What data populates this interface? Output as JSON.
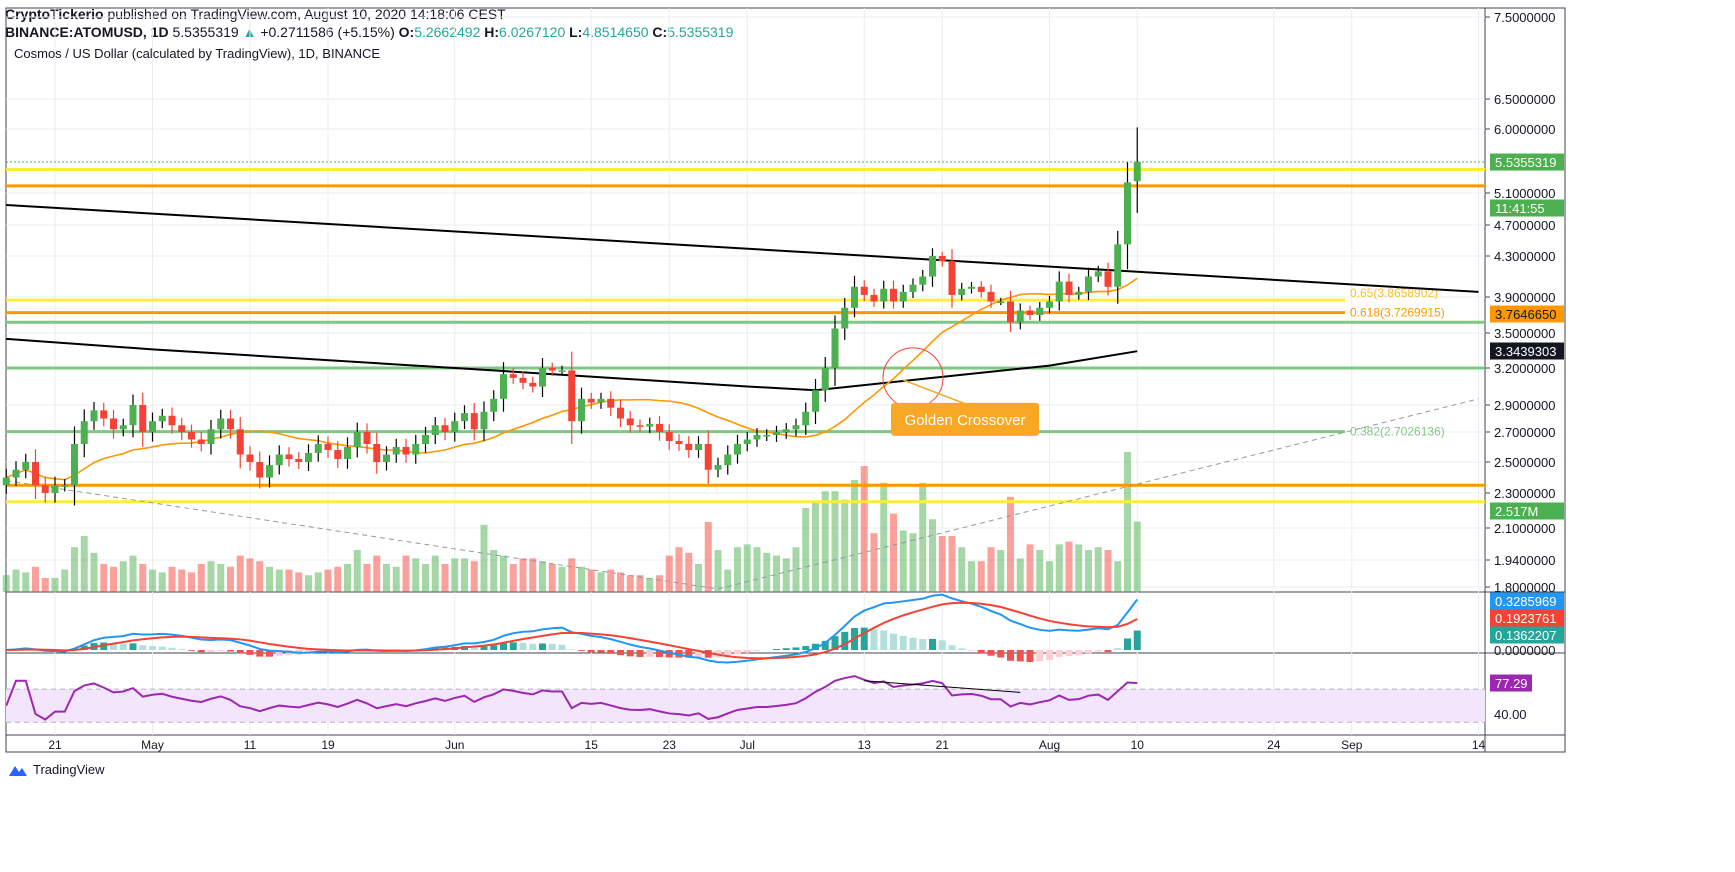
{
  "header": {
    "publisher": "CryptoTickerio",
    "published_text": "published on TradingView.com, August 10, 2020 14:18:06 CEST",
    "symbol": "BINANCE:ATOMUSD, 1D",
    "price": "5.5355319",
    "change": "+0.2711586 (+5.15%)",
    "o_label": "O:",
    "o": "5.2662492",
    "h_label": "H:",
    "h": "6.0267120",
    "l_label": "L:",
    "l": "4.8514650",
    "c_label": "C:",
    "c": "5.5355319"
  },
  "chart_title": "Cosmos / US Dollar (calculated by TradingView), 1D, BINANCE",
  "footer": {
    "brand": "TradingView"
  },
  "chart_data": {
    "type": "candlestick",
    "start_date": "2020-04-16",
    "close": [
      2.4,
      2.45,
      2.5,
      2.35,
      2.3,
      2.35,
      2.35,
      2.62,
      2.78,
      2.86,
      2.8,
      2.72,
      2.75,
      2.9,
      2.7,
      2.78,
      2.82,
      2.75,
      2.7,
      2.65,
      2.62,
      2.72,
      2.8,
      2.72,
      2.55,
      2.5,
      2.4,
      2.48,
      2.55,
      2.52,
      2.5,
      2.56,
      2.62,
      2.58,
      2.52,
      2.6,
      2.7,
      2.62,
      2.5,
      2.55,
      2.6,
      2.55,
      2.62,
      2.68,
      2.75,
      2.7,
      2.78,
      2.84,
      2.72,
      2.85,
      2.95,
      3.15,
      3.12,
      3.08,
      3.05,
      3.2,
      3.18,
      3.18,
      2.78,
      2.95,
      2.92,
      2.95,
      2.88,
      2.8,
      2.75,
      2.74,
      2.76,
      2.7,
      2.64,
      2.62,
      2.58,
      2.62,
      2.45,
      2.48,
      2.55,
      2.62,
      2.65,
      2.68,
      2.68,
      2.7,
      2.72,
      2.75,
      2.85,
      3.02,
      3.2,
      3.55,
      3.78,
      4.0,
      3.92,
      3.85,
      3.98,
      3.85,
      3.95,
      4.02,
      4.1,
      4.3,
      4.25,
      3.92,
      3.98,
      4.0,
      3.95,
      3.85,
      3.85,
      3.62,
      3.75,
      3.7,
      3.78,
      3.85,
      4.05,
      3.92,
      3.95,
      4.1,
      4.15,
      4.0,
      4.45,
      5.25,
      5.5355319
    ],
    "last_candle": {
      "open": 5.2662492,
      "high": 6.026712,
      "low": 4.851465,
      "close": 5.5355319
    },
    "volume_m": [
      0.6,
      0.8,
      0.7,
      0.9,
      0.5,
      0.5,
      0.8,
      1.6,
      2.0,
      1.4,
      1.0,
      0.9,
      1.1,
      1.3,
      1.0,
      0.8,
      0.7,
      0.9,
      0.8,
      0.7,
      1.0,
      1.1,
      1.0,
      0.9,
      1.3,
      1.2,
      1.1,
      0.9,
      0.8,
      0.8,
      0.7,
      0.6,
      0.7,
      0.8,
      0.9,
      1.0,
      1.5,
      1.0,
      1.3,
      1.0,
      0.9,
      1.3,
      1.2,
      1.0,
      1.3,
      1.0,
      1.2,
      1.2,
      1.1,
      2.4,
      1.5,
      1.3,
      1.0,
      1.2,
      1.2,
      1.1,
      1.0,
      0.9,
      1.2,
      0.9,
      0.8,
      0.7,
      0.8,
      0.7,
      0.6,
      0.6,
      0.5,
      0.6,
      1.3,
      1.6,
      1.4,
      1.0,
      2.5,
      1.5,
      0.8,
      1.6,
      1.7,
      1.6,
      1.4,
      1.3,
      1.2,
      1.6,
      3.0,
      3.2,
      3.6,
      3.6,
      3.3,
      4.0,
      4.5,
      2.1,
      3.9,
      2.8,
      2.2,
      2.1,
      3.9,
      2.6,
      2.0,
      2.0,
      1.6,
      1.1,
      1.1,
      1.6,
      1.5,
      3.4,
      1.2,
      1.7,
      1.5,
      1.1,
      1.7,
      1.8,
      1.7,
      1.5,
      1.6,
      1.5,
      1.1,
      5.0,
      2.517
    ],
    "ma200": [
      [
        "2020-04-16",
        3.45
      ],
      [
        "2020-05-01",
        3.36
      ],
      [
        "2020-06-01",
        3.2
      ],
      [
        "2020-07-01",
        3.05
      ],
      [
        "2020-07-08",
        3.02
      ],
      [
        "2020-07-20",
        3.12
      ],
      [
        "2020-08-01",
        3.22
      ],
      [
        "2020-08-10",
        3.344
      ]
    ],
    "price_ticks": [
      7.5,
      6.5,
      6.0,
      5.1,
      4.7,
      4.3,
      3.9,
      3.5,
      3.2,
      2.9,
      2.7,
      2.5,
      2.3,
      2.1,
      1.94,
      1.8
    ],
    "price_tick_labels": [
      "7.5000000",
      "6.5000000",
      "6.0000000",
      "5.1000000",
      "4.7000000",
      "4.3000000",
      "3.9000000",
      "3.5000000",
      "3.2000000",
      "2.9000000",
      "2.7000000",
      "2.5000000",
      "2.3000000",
      "2.1000000",
      "1.9400000",
      "1.8000000"
    ],
    "x_ticks": [
      [
        "2020-04-21",
        "21"
      ],
      [
        "2020-05-01",
        "May"
      ],
      [
        "2020-05-11",
        "11"
      ],
      [
        "2020-05-19",
        "19"
      ],
      [
        "2020-06-01",
        "Jun"
      ],
      [
        "2020-06-15",
        "15"
      ],
      [
        "2020-06-23",
        "23"
      ],
      [
        "2020-07-01",
        "Jul"
      ],
      [
        "2020-07-13",
        "13"
      ],
      [
        "2020-07-21",
        "21"
      ],
      [
        "2020-08-01",
        "Aug"
      ],
      [
        "2020-08-10",
        "10"
      ],
      [
        "2020-08-24",
        "24"
      ],
      [
        "2020-09-01",
        "Sep"
      ],
      [
        "2020-09-14",
        "14"
      ]
    ],
    "levels": [
      {
        "price": 5.43,
        "color": "#ffeb3b"
      },
      {
        "price": 5.2,
        "color": "#ff9800"
      },
      {
        "price": 3.8658902,
        "color": "#ffeb3b",
        "label": "0.65(3.8658902)"
      },
      {
        "price": 3.7269915,
        "color": "#ff9800",
        "label": "0.618(3.7269915)"
      },
      {
        "price": 3.62,
        "color": "#81c784"
      },
      {
        "price": 3.2,
        "color": "#81c784"
      },
      {
        "price": 2.7026136,
        "color": "#81c784",
        "label": "0.382(2.7026136)"
      },
      {
        "price": 2.35,
        "color": "#ff9800"
      },
      {
        "price": 2.25,
        "color": "#ffeb3b"
      }
    ],
    "trendline": [
      [
        "2020-04-16",
        4.95
      ],
      [
        "2020-09-14",
        3.95
      ]
    ],
    "dashed_line": [
      [
        "2020-04-16",
        2.38
      ],
      [
        "2020-06-28",
        1.79
      ],
      [
        "2020-09-14",
        2.95
      ]
    ],
    "annotation": {
      "text": "Golden Crossover",
      "date": "2020-07-18",
      "price": 3.12,
      "color": "#f9a825"
    },
    "axis_tags": [
      {
        "text": "5.5355319",
        "price": 5.5355319,
        "bg": "#4caf50"
      },
      {
        "text": "11:41:55",
        "price": 5.33,
        "bg": "#4caf50"
      },
      {
        "text": "3.7646650",
        "price": 3.764665,
        "bg": "#ff9800",
        "fg": "#131722"
      },
      {
        "text": "3.3439303",
        "price": 3.3439303,
        "bg": "#131722"
      }
    ],
    "volume_tag": {
      "text": "2.517M",
      "value": 2.517,
      "bg": "#4caf50"
    },
    "macd": {
      "macd_tag": "0.3285969",
      "signal_tag": "0.1923761",
      "hist_tag": "0.1362207",
      "zero_label": "0.0000000",
      "colors": {
        "macd": "#2196f3",
        "signal": "#f44336",
        "hist": "#26a69a"
      }
    },
    "rsi": {
      "tag": "77.29",
      "level_label": "40.00",
      "color": "#9c27b0",
      "divergence": [
        [
          "2020-07-13",
          80
        ],
        [
          "2020-07-29",
          66
        ]
      ]
    },
    "colors": {
      "up": "#4caf50",
      "down": "#f44336",
      "ma": "#ff9800",
      "ma200": "#000000"
    }
  }
}
